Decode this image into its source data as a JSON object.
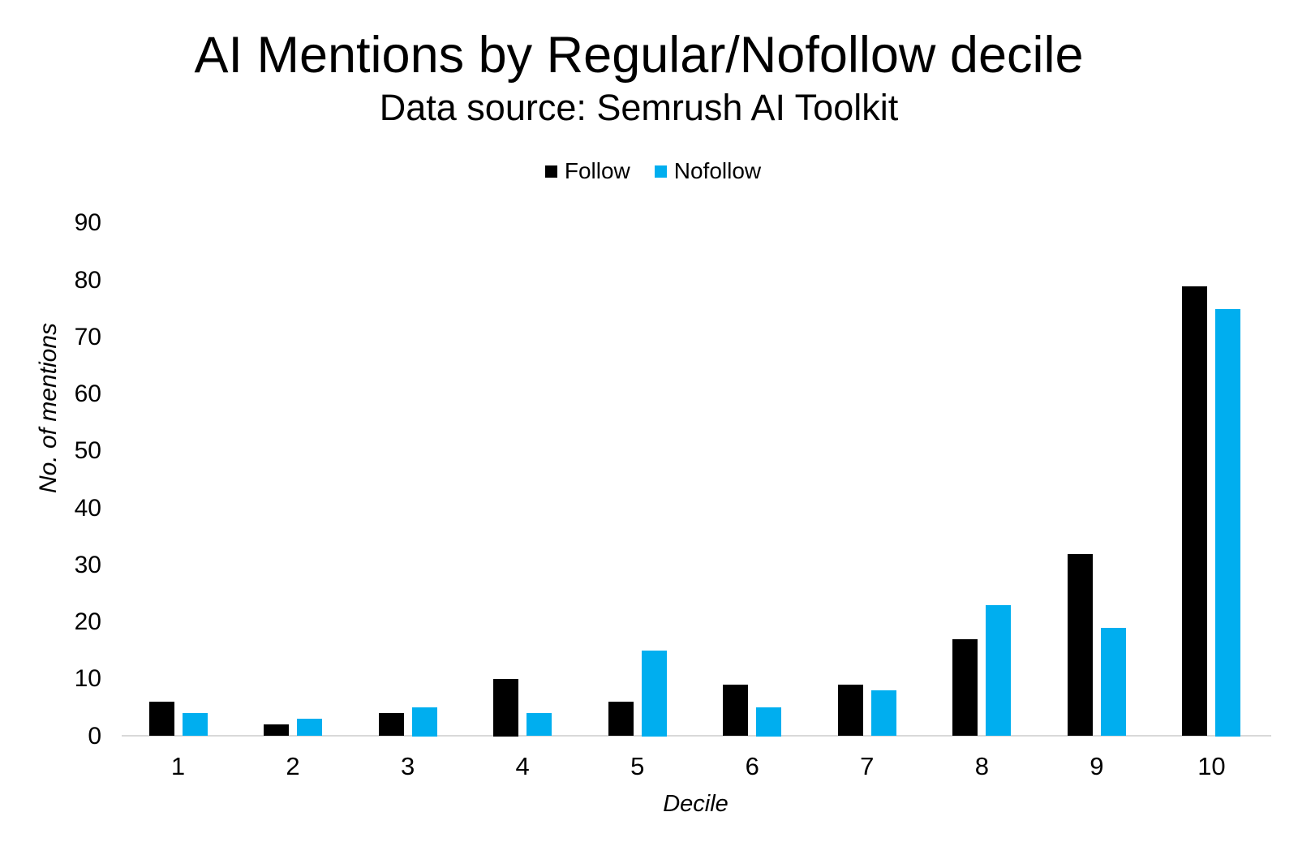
{
  "chart_data": {
    "type": "bar",
    "title": "AI Mentions by Regular/Nofollow decile",
    "subtitle": "Data source: Semrush AI Toolkit",
    "xlabel": "Decile",
    "ylabel": "No. of mentions",
    "categories": [
      "1",
      "2",
      "3",
      "4",
      "5",
      "6",
      "7",
      "8",
      "9",
      "10"
    ],
    "series": [
      {
        "name": "Follow",
        "color": "#000000",
        "values": [
          6,
          2,
          4,
          10,
          6,
          9,
          9,
          17,
          32,
          79
        ]
      },
      {
        "name": "Nofollow",
        "color": "#00aeef",
        "values": [
          4,
          3,
          5,
          4,
          15,
          5,
          8,
          23,
          19,
          75
        ]
      }
    ],
    "ylim": [
      0,
      90
    ],
    "yticks": [
      0,
      10,
      20,
      30,
      40,
      50,
      60,
      70,
      80,
      90
    ],
    "grid": false,
    "legend_position": "top",
    "background_color": "#ffffff",
    "axis_line_color": "#d9d9d9"
  }
}
